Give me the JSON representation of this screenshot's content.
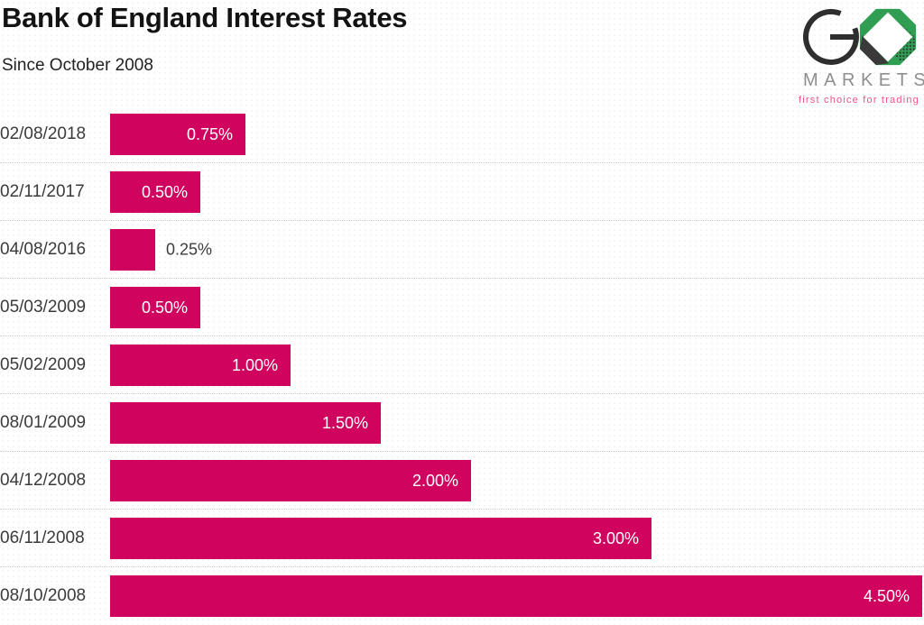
{
  "header": {
    "title": "Bank of England Interest Rates",
    "subtitle": "Since October 2008"
  },
  "logo": {
    "markets": "MARKETS",
    "tagline": "first choice for trading",
    "green": "#2f9e53",
    "charcoal": "#2e2e2e",
    "gray_text": "#8f8f8f",
    "pink_text": "#f0548a"
  },
  "chart_data": {
    "type": "bar",
    "orientation": "horizontal",
    "title": "Bank of England Interest Rates",
    "subtitle": "Since October 2008",
    "categories": [
      "02/08/2018",
      "02/11/2017",
      "04/08/2016",
      "05/03/2009",
      "05/02/2009",
      "08/01/2009",
      "04/12/2008",
      "06/11/2008",
      "08/10/2008"
    ],
    "values": [
      0.75,
      0.5,
      0.25,
      0.5,
      1.0,
      1.5,
      2.0,
      3.0,
      4.5
    ],
    "value_labels": [
      "0.75%",
      "0.50%",
      "0.25%",
      "0.50%",
      "1.00%",
      "1.50%",
      "2.00%",
      "3.00%",
      "4.50%"
    ],
    "label_inside": [
      true,
      true,
      false,
      true,
      true,
      true,
      true,
      true,
      true
    ],
    "unit": "%",
    "xlim": [
      0,
      4.5
    ],
    "bar_color": "#d0045e",
    "grid": "dotted horizontal row separators",
    "legend": "none",
    "axis_labels": "none"
  }
}
